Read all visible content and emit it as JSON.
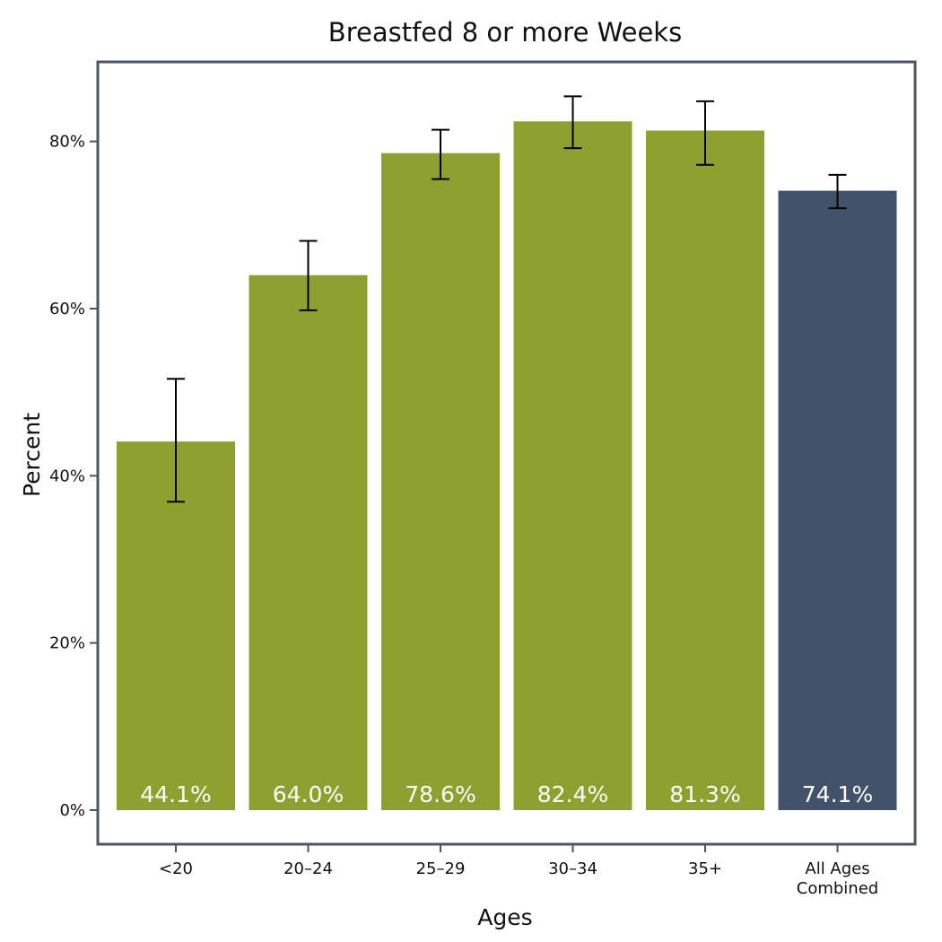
{
  "chart_data": {
    "type": "bar",
    "title": "Breastfed 8 or more Weeks",
    "xlabel": "Ages",
    "ylabel": "Percent",
    "ylim": [
      0,
      90
    ],
    "yticks": [
      0,
      20,
      40,
      60,
      80
    ],
    "ytick_labels": [
      "0%",
      "20%",
      "40%",
      "60%",
      "80%"
    ],
    "categories": [
      "<20",
      "20–24",
      "25–29",
      "30–34",
      "35+",
      "All Ages Combined"
    ],
    "category_label_lines": [
      [
        "<20"
      ],
      [
        "20–24"
      ],
      [
        "25–29"
      ],
      [
        "30–34"
      ],
      [
        "35+"
      ],
      [
        "All Ages",
        "Combined"
      ]
    ],
    "values": [
      44.1,
      64.0,
      78.6,
      82.4,
      81.3,
      74.1
    ],
    "value_labels": [
      "44.1%",
      "64.0%",
      "78.6%",
      "82.4%",
      "81.3%",
      "74.1%"
    ],
    "error_low": [
      36.9,
      59.8,
      75.5,
      79.2,
      77.2,
      72.0
    ],
    "error_high": [
      51.6,
      68.1,
      81.4,
      85.4,
      84.8,
      76.0
    ],
    "bar_colors": [
      "#8da030",
      "#8da030",
      "#8da030",
      "#8da030",
      "#8da030",
      "#42526a"
    ],
    "frame_color": "#4a5568",
    "grid": false,
    "legend": "none"
  }
}
